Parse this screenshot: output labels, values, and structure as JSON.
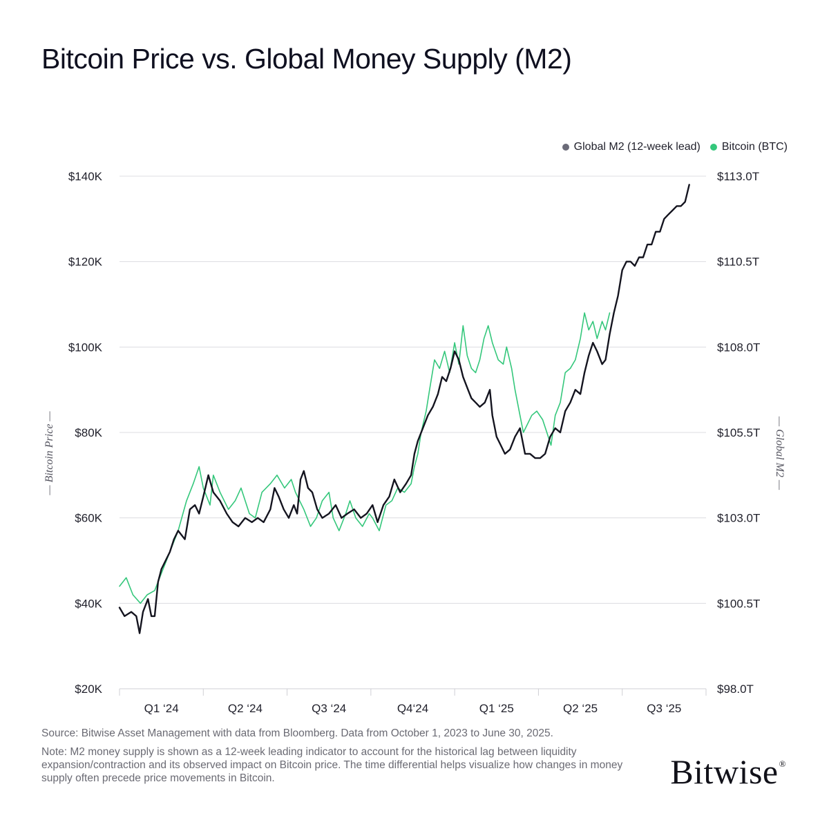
{
  "title": "Bitcoin Price vs. Global Money Supply (M2)",
  "legend": [
    {
      "label": "Global M2 (12-week lead)",
      "color": "#6b6b78"
    },
    {
      "label": "Bitcoin (BTC)",
      "color": "#34c77b"
    }
  ],
  "y_left_label": "Bitcoin Price",
  "y_right_label": "Global M2",
  "footer": {
    "source": "Source: Bitwise Asset Management with data from Bloomberg. Data from October 1, 2023 to June 30, 2025.",
    "note": "Note: M2 money supply is shown as a 12-week leading indicator to account for the historical lag between liquidity expansion/contraction and its observed impact on Bitcoin price. The time differential helps visualize how changes in money supply often precede price movements in Bitcoin."
  },
  "logo": {
    "text": "Bitwise",
    "mark": "®"
  },
  "chart_data": {
    "type": "line",
    "title": "Bitcoin Price vs. Global Money Supply (M2)",
    "x_tick_labels": [
      "Q1 ‘24",
      "Q2 ‘24",
      "Q3 ‘24",
      "Q4‘24",
      "Q1 ‘25",
      "Q2 ‘25",
      "Q3 ‘25"
    ],
    "x_range": [
      0,
      7
    ],
    "y_left": {
      "label": "Bitcoin Price",
      "range": [
        20000,
        140000
      ],
      "ticks": [
        20000,
        40000,
        60000,
        80000,
        100000,
        120000,
        140000
      ],
      "tick_labels": [
        "$20K",
        "$40K",
        "$60K",
        "$80K",
        "$100K",
        "$120K",
        "$140K"
      ]
    },
    "y_right": {
      "label": "Global M2",
      "ticks": [
        "$98.0T",
        "$100.5T",
        "$103.0T",
        "$105.5T",
        "$108.0T",
        "$110.5T",
        "$113.0T"
      ]
    },
    "grid": true,
    "legend_position": "top-right",
    "series": [
      {
        "name": "Bitcoin (BTC)",
        "color": "#34c77b",
        "x_unit": "quarters from chart start",
        "y_unit": "USD",
        "points": [
          [
            0.0,
            44000
          ],
          [
            0.08,
            46000
          ],
          [
            0.16,
            42000
          ],
          [
            0.25,
            40000
          ],
          [
            0.33,
            42000
          ],
          [
            0.42,
            43000
          ],
          [
            0.5,
            47000
          ],
          [
            0.6,
            52000
          ],
          [
            0.7,
            57000
          ],
          [
            0.8,
            64000
          ],
          [
            0.88,
            68000
          ],
          [
            0.95,
            72000
          ],
          [
            1.0,
            67000
          ],
          [
            1.08,
            63000
          ],
          [
            1.12,
            70000
          ],
          [
            1.2,
            66000
          ],
          [
            1.3,
            62000
          ],
          [
            1.38,
            64000
          ],
          [
            1.45,
            67000
          ],
          [
            1.55,
            61000
          ],
          [
            1.62,
            60000
          ],
          [
            1.7,
            66000
          ],
          [
            1.8,
            68000
          ],
          [
            1.88,
            70000
          ],
          [
            1.97,
            67000
          ],
          [
            2.05,
            69000
          ],
          [
            2.1,
            66000
          ],
          [
            2.2,
            62000
          ],
          [
            2.28,
            58000
          ],
          [
            2.35,
            60000
          ],
          [
            2.42,
            64000
          ],
          [
            2.5,
            66000
          ],
          [
            2.55,
            60000
          ],
          [
            2.62,
            57000
          ],
          [
            2.7,
            61000
          ],
          [
            2.75,
            64000
          ],
          [
            2.82,
            60000
          ],
          [
            2.9,
            58000
          ],
          [
            2.98,
            61000
          ],
          [
            3.02,
            60000
          ],
          [
            3.1,
            57000
          ],
          [
            3.18,
            63000
          ],
          [
            3.25,
            64000
          ],
          [
            3.32,
            67000
          ],
          [
            3.4,
            66000
          ],
          [
            3.48,
            68000
          ],
          [
            3.52,
            72000
          ],
          [
            3.56,
            75000
          ],
          [
            3.6,
            80000
          ],
          [
            3.66,
            85000
          ],
          [
            3.7,
            90000
          ],
          [
            3.76,
            97000
          ],
          [
            3.82,
            95000
          ],
          [
            3.88,
            99000
          ],
          [
            3.94,
            94000
          ],
          [
            4.0,
            101000
          ],
          [
            4.05,
            96000
          ],
          [
            4.1,
            105000
          ],
          [
            4.15,
            98000
          ],
          [
            4.2,
            95000
          ],
          [
            4.25,
            94000
          ],
          [
            4.3,
            97000
          ],
          [
            4.35,
            102000
          ],
          [
            4.4,
            105000
          ],
          [
            4.45,
            101000
          ],
          [
            4.52,
            97000
          ],
          [
            4.58,
            96000
          ],
          [
            4.62,
            100000
          ],
          [
            4.68,
            95000
          ],
          [
            4.72,
            90000
          ],
          [
            4.78,
            84000
          ],
          [
            4.82,
            80000
          ],
          [
            4.87,
            82000
          ],
          [
            4.92,
            84000
          ],
          [
            4.98,
            85000
          ],
          [
            5.05,
            83000
          ],
          [
            5.1,
            80000
          ],
          [
            5.15,
            77000
          ],
          [
            5.2,
            84000
          ],
          [
            5.26,
            87000
          ],
          [
            5.32,
            94000
          ],
          [
            5.38,
            95000
          ],
          [
            5.44,
            97000
          ],
          [
            5.5,
            102000
          ],
          [
            5.55,
            108000
          ],
          [
            5.6,
            104000
          ],
          [
            5.65,
            106000
          ],
          [
            5.7,
            102000
          ],
          [
            5.76,
            106000
          ],
          [
            5.8,
            104000
          ],
          [
            5.85,
            108000
          ]
        ]
      },
      {
        "name": "Global M2 (12-week lead)",
        "color": "#14141f",
        "x_unit": "quarters from chart start",
        "y_unit": "USD (Bitcoin-price scale)",
        "points": [
          [
            0.0,
            39000
          ],
          [
            0.06,
            37000
          ],
          [
            0.14,
            38000
          ],
          [
            0.2,
            37000
          ],
          [
            0.24,
            33000
          ],
          [
            0.28,
            38000
          ],
          [
            0.34,
            41000
          ],
          [
            0.38,
            37000
          ],
          [
            0.42,
            37000
          ],
          [
            0.46,
            45000
          ],
          [
            0.5,
            48000
          ],
          [
            0.55,
            50000
          ],
          [
            0.6,
            52000
          ],
          [
            0.65,
            55000
          ],
          [
            0.7,
            57000
          ],
          [
            0.78,
            55000
          ],
          [
            0.84,
            62000
          ],
          [
            0.9,
            63000
          ],
          [
            0.95,
            61000
          ],
          [
            1.0,
            65000
          ],
          [
            1.06,
            70000
          ],
          [
            1.12,
            66000
          ],
          [
            1.2,
            64000
          ],
          [
            1.28,
            61000
          ],
          [
            1.35,
            59000
          ],
          [
            1.42,
            58000
          ],
          [
            1.5,
            60000
          ],
          [
            1.58,
            59000
          ],
          [
            1.65,
            60000
          ],
          [
            1.72,
            59000
          ],
          [
            1.8,
            62000
          ],
          [
            1.85,
            67000
          ],
          [
            1.9,
            65000
          ],
          [
            1.96,
            62000
          ],
          [
            2.02,
            60000
          ],
          [
            2.08,
            63000
          ],
          [
            2.12,
            61000
          ],
          [
            2.16,
            69000
          ],
          [
            2.2,
            71000
          ],
          [
            2.25,
            67000
          ],
          [
            2.3,
            66000
          ],
          [
            2.36,
            62000
          ],
          [
            2.42,
            60000
          ],
          [
            2.5,
            61000
          ],
          [
            2.58,
            63000
          ],
          [
            2.65,
            60000
          ],
          [
            2.72,
            61000
          ],
          [
            2.8,
            62000
          ],
          [
            2.88,
            60000
          ],
          [
            2.95,
            61000
          ],
          [
            3.02,
            63000
          ],
          [
            3.08,
            59000
          ],
          [
            3.15,
            63000
          ],
          [
            3.22,
            65000
          ],
          [
            3.28,
            69000
          ],
          [
            3.35,
            66000
          ],
          [
            3.42,
            68000
          ],
          [
            3.48,
            70000
          ],
          [
            3.52,
            75000
          ],
          [
            3.56,
            78000
          ],
          [
            3.62,
            81000
          ],
          [
            3.68,
            84000
          ],
          [
            3.74,
            86000
          ],
          [
            3.8,
            89000
          ],
          [
            3.85,
            93000
          ],
          [
            3.9,
            92000
          ],
          [
            3.95,
            95000
          ],
          [
            4.0,
            99000
          ],
          [
            4.05,
            97000
          ],
          [
            4.1,
            93000
          ],
          [
            4.16,
            90000
          ],
          [
            4.2,
            88000
          ],
          [
            4.25,
            87000
          ],
          [
            4.3,
            86000
          ],
          [
            4.36,
            87000
          ],
          [
            4.42,
            90000
          ],
          [
            4.45,
            84000
          ],
          [
            4.5,
            79000
          ],
          [
            4.55,
            77000
          ],
          [
            4.6,
            75000
          ],
          [
            4.66,
            76000
          ],
          [
            4.72,
            79000
          ],
          [
            4.78,
            81000
          ],
          [
            4.84,
            75000
          ],
          [
            4.9,
            75000
          ],
          [
            4.96,
            74000
          ],
          [
            5.02,
            74000
          ],
          [
            5.08,
            75000
          ],
          [
            5.14,
            79000
          ],
          [
            5.2,
            81000
          ],
          [
            5.26,
            80000
          ],
          [
            5.32,
            85000
          ],
          [
            5.38,
            87000
          ],
          [
            5.44,
            90000
          ],
          [
            5.5,
            89000
          ],
          [
            5.55,
            94000
          ],
          [
            5.6,
            98000
          ],
          [
            5.65,
            101000
          ],
          [
            5.7,
            99000
          ],
          [
            5.76,
            96000
          ],
          [
            5.8,
            97000
          ],
          [
            5.85,
            103000
          ],
          [
            5.9,
            108000
          ],
          [
            5.95,
            112000
          ],
          [
            6.0,
            118000
          ],
          [
            6.05,
            120000
          ],
          [
            6.1,
            120000
          ],
          [
            6.15,
            119000
          ],
          [
            6.2,
            121000
          ],
          [
            6.25,
            121000
          ],
          [
            6.3,
            124000
          ],
          [
            6.35,
            124000
          ],
          [
            6.4,
            127000
          ],
          [
            6.45,
            127000
          ],
          [
            6.5,
            130000
          ],
          [
            6.55,
            131000
          ],
          [
            6.6,
            132000
          ],
          [
            6.65,
            133000
          ],
          [
            6.7,
            133000
          ],
          [
            6.75,
            134000
          ],
          [
            6.8,
            138000
          ]
        ]
      }
    ]
  }
}
